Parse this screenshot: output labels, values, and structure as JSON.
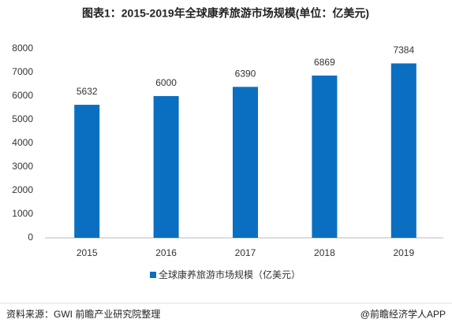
{
  "chart_data": {
    "type": "bar",
    "title": "图表1：2015-2019年全球康养旅游市场规模(单位：亿美元)",
    "categories": [
      "2015",
      "2016",
      "2017",
      "2018",
      "2019"
    ],
    "series": [
      {
        "name": "全球康养旅游市场规模（亿美元）",
        "color": "#0b6fc1",
        "values": [
          5632,
          6000,
          6390,
          6869,
          7384
        ]
      }
    ],
    "ylim": [
      0,
      8000
    ],
    "yticks": [
      0,
      1000,
      2000,
      3000,
      4000,
      5000,
      6000,
      7000,
      8000
    ],
    "grid": false,
    "legend": "bottom"
  },
  "footer": {
    "source": "资料来源：GWI 前瞻产业研究院整理",
    "credit": "@前瞻经济学人APP"
  }
}
